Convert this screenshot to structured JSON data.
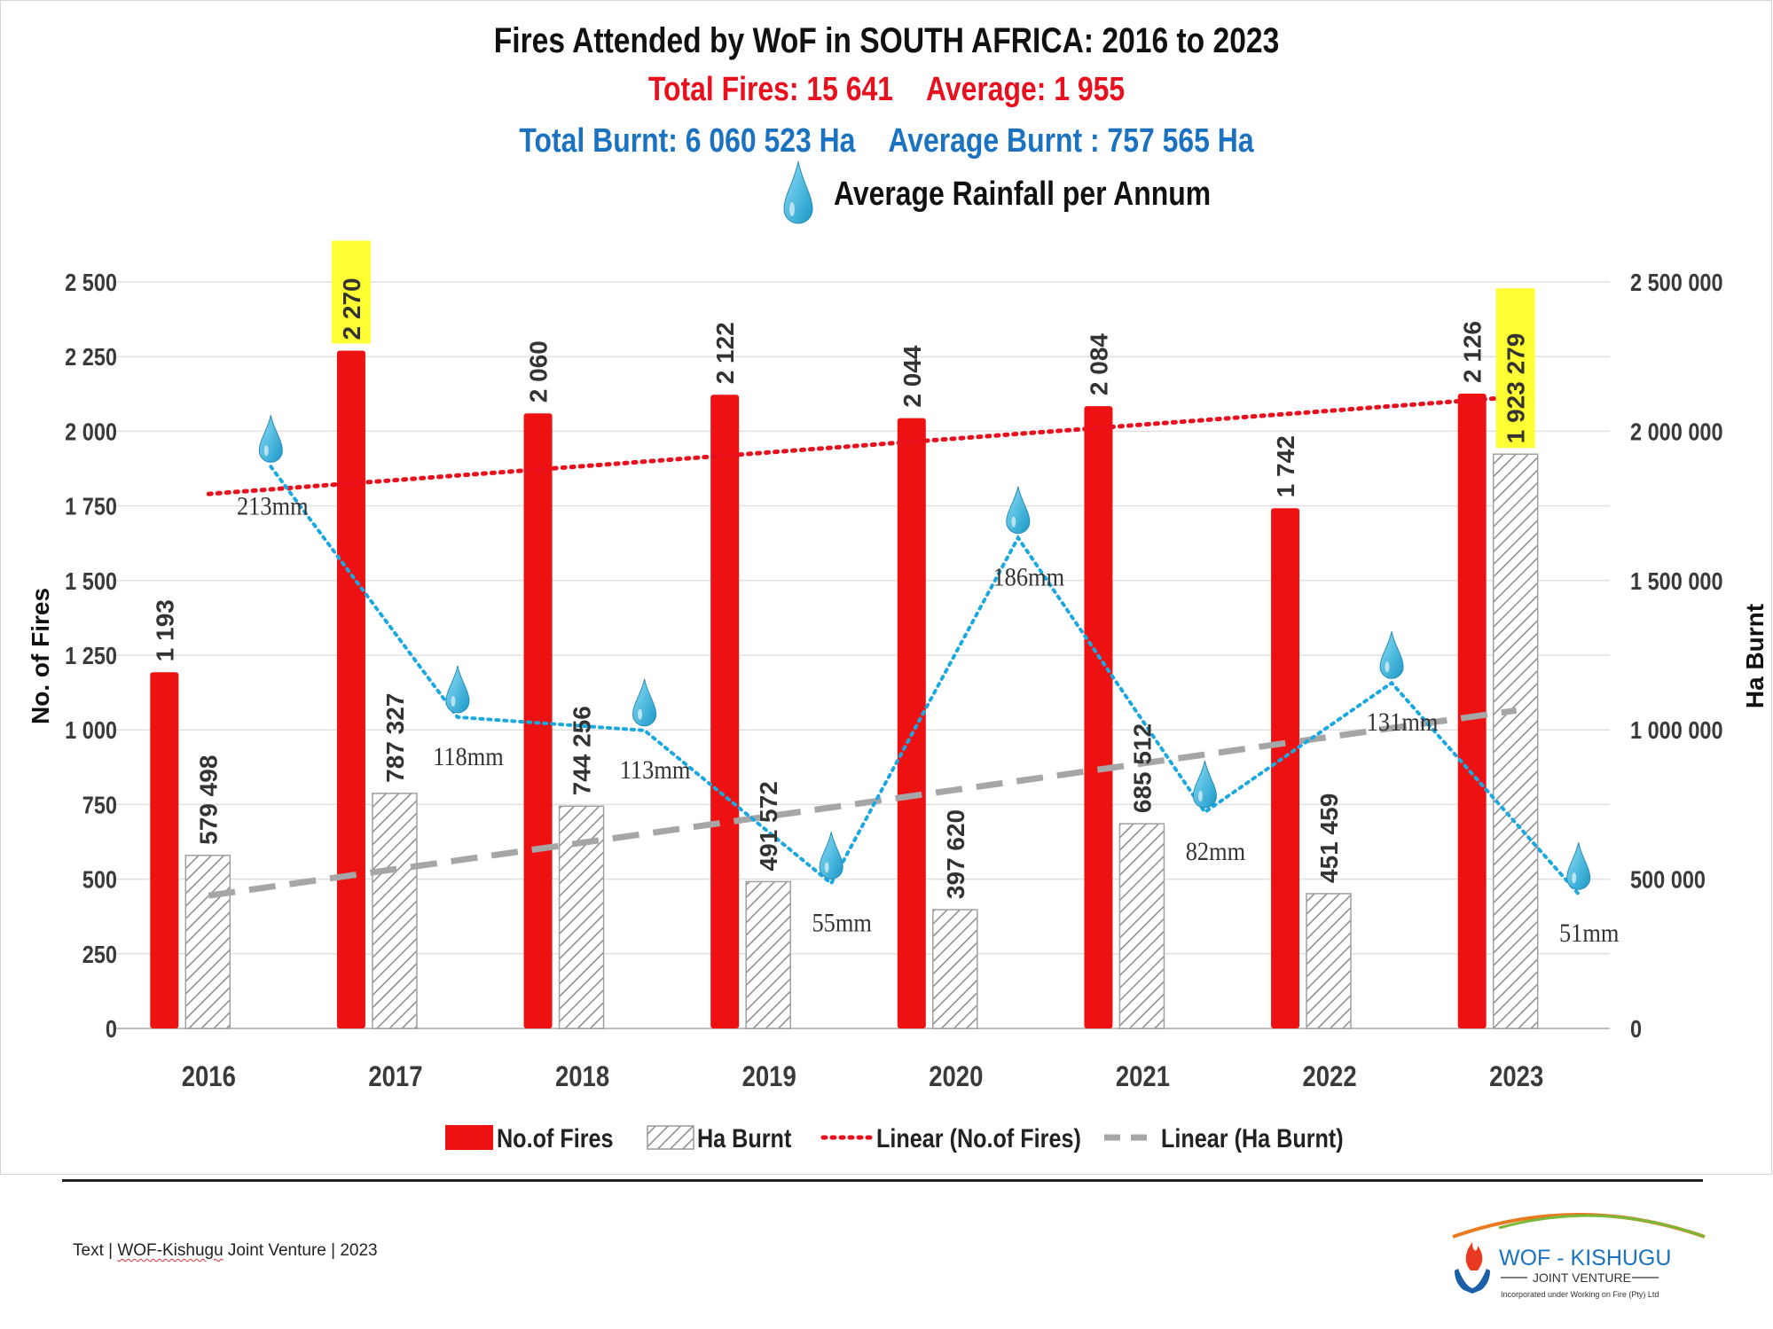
{
  "header": {
    "title": "Fires Attended by WoF in SOUTH AFRICA:  2016 to 2023",
    "total_fires": "Total Fires: 15 641",
    "average": "Average: 1 955",
    "total_burnt": "Total Burnt: 6 060 523 Ha",
    "average_burnt": "Average Burnt : 757 565 Ha",
    "rainfall_legend": "Average Rainfall per Annum"
  },
  "chart_data": {
    "type": "bar",
    "categories": [
      "2016",
      "2017",
      "2018",
      "2019",
      "2020",
      "2021",
      "2022",
      "2023"
    ],
    "series": [
      {
        "name": "No.of Fires",
        "axis": "left",
        "values": [
          1193,
          2270,
          2060,
          2122,
          2044,
          2084,
          1742,
          2126
        ],
        "labels": [
          "1 193",
          "2 270",
          "2 060",
          "2 122",
          "2 044",
          "2 084",
          "1 742",
          "2 126"
        ],
        "color": "#ee1111"
      },
      {
        "name": "Ha Burnt",
        "axis": "right",
        "values": [
          579498,
          787327,
          744256,
          491572,
          397620,
          685512,
          451459,
          1923279
        ],
        "labels": [
          "579 498",
          "787 327",
          "744 256",
          "491 572",
          "397 620",
          "685 512",
          "451 459",
          "1 923 279"
        ],
        "color": "#9a9a9a"
      }
    ],
    "trendlines": [
      {
        "name": "Linear (No.of Fires)",
        "axis": "left",
        "start": 1790,
        "end": 2115,
        "color": "#e8101d",
        "style": "dotted"
      },
      {
        "name": "Linear (Ha Burnt)",
        "axis": "right",
        "start": 445000,
        "end": 1065000,
        "color": "#a6a6a6",
        "style": "dashed"
      }
    ],
    "rainfall": {
      "values_mm": [
        213,
        118,
        113,
        55,
        186,
        82,
        131,
        51
      ],
      "labels": [
        "213mm",
        "118mm",
        "113mm",
        "55mm",
        "186mm",
        "82mm",
        "131mm",
        "51mm"
      ],
      "color": "#1aa8e0"
    },
    "highlighted_labels": [
      "2 270",
      "1 923 279"
    ],
    "highlight_color": "#ffff33",
    "left_axis": {
      "label": "No. of Fires",
      "min": 0,
      "max": 2500,
      "ticks": [
        0,
        250,
        500,
        750,
        1000,
        1250,
        1500,
        1750,
        2000,
        2250,
        2500
      ],
      "tick_labels": [
        "0",
        "250",
        "500",
        "750",
        "1 000",
        "1 250",
        "1 500",
        "1 750",
        "2 000",
        "2 250",
        "2 500"
      ]
    },
    "right_axis": {
      "label": "Ha Burnt",
      "min": 0,
      "max": 2500000,
      "ticks": [
        0,
        500000,
        1000000,
        1500000,
        2000000,
        2500000
      ],
      "tick_labels": [
        "0",
        "500 000",
        "1 000 000",
        "1 500 000",
        "2 000 000",
        "2 500 000"
      ]
    },
    "legend": {
      "position": "bottom",
      "items": [
        "No.of Fires",
        "Ha Burnt",
        "Linear (No.of Fires)",
        "Linear (Ha Burnt)"
      ]
    },
    "grid": true
  },
  "footer": {
    "prefix": "Text | ",
    "brand": "WOF-Kishugu",
    "rest": " Joint Venture   |   2023"
  },
  "logo": {
    "name": "WOF - KISHUGU",
    "sub": "JOINT VENTURE",
    "tagline": "Incorporated under Working on Fire (Pty) Ltd"
  }
}
